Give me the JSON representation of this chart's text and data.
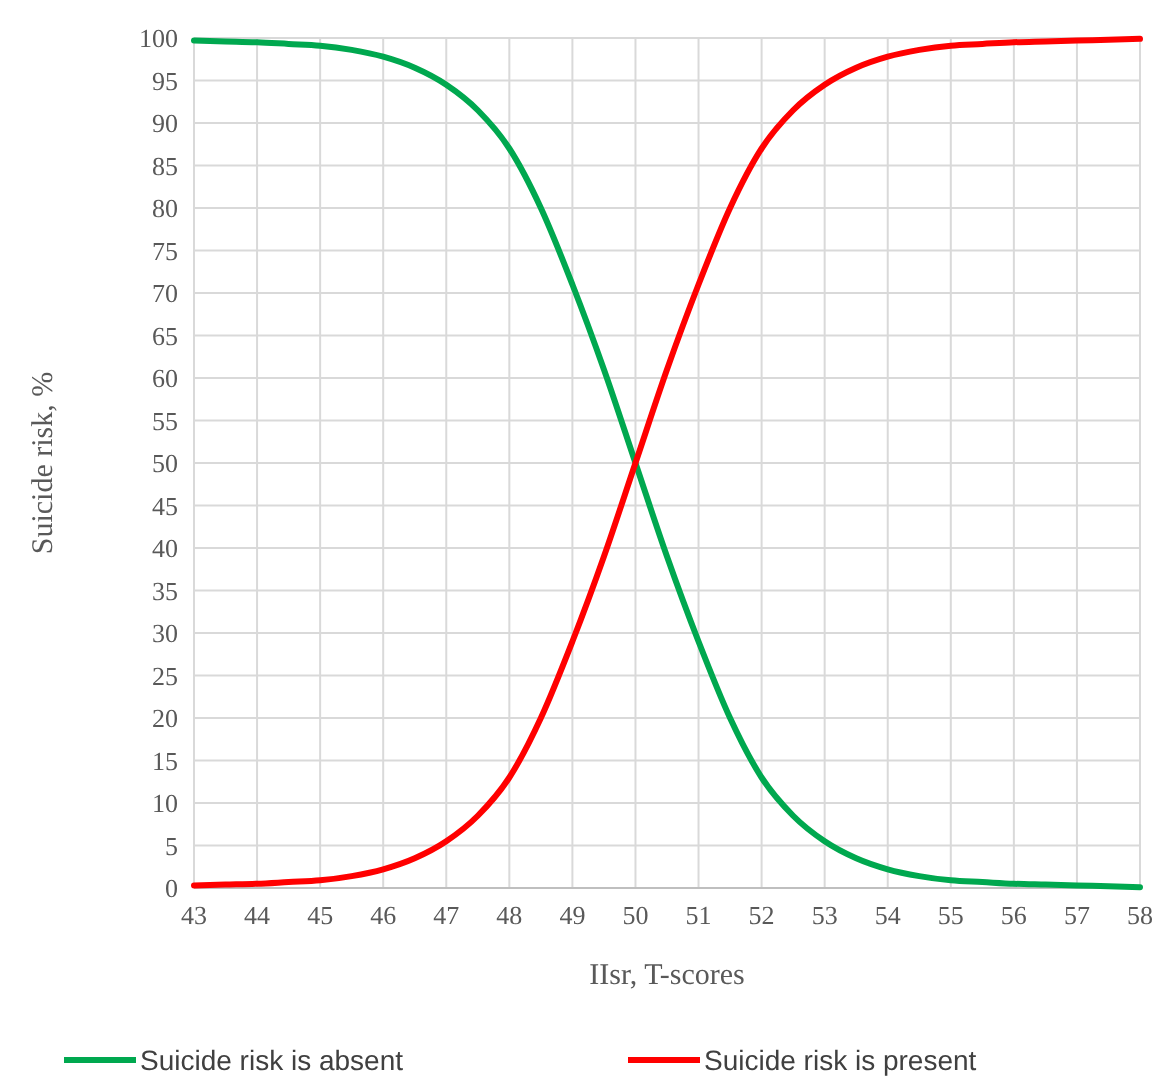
{
  "chart_data": {
    "type": "line",
    "xlabel": "IIsr, T-scores",
    "ylabel": "Suicide risk, %",
    "x": [
      43,
      43.5,
      44,
      44.5,
      45,
      45.5,
      46,
      46.5,
      47,
      47.5,
      48,
      48.5,
      49,
      49.5,
      50,
      50.5,
      51,
      51.5,
      52,
      52.5,
      53,
      53.5,
      54,
      54.5,
      55,
      55.5,
      56,
      56.5,
      57,
      57.5,
      58
    ],
    "series": [
      {
        "name": "Suicide risk is absent",
        "color": "#00a84f",
        "values": [
          99.7,
          99.6,
          99.5,
          99.3,
          99.1,
          98.6,
          97.8,
          96.5,
          94.5,
          91.5,
          87,
          80,
          71,
          61,
          50,
          39,
          29,
          20,
          13,
          8.5,
          5.5,
          3.5,
          2.2,
          1.4,
          0.9,
          0.7,
          0.5,
          0.4,
          0.3,
          0.2,
          0.1
        ]
      },
      {
        "name": "Suicide risk is present",
        "color": "#ff0000",
        "values": [
          0.3,
          0.4,
          0.5,
          0.7,
          0.9,
          1.4,
          2.2,
          3.5,
          5.5,
          8.5,
          13,
          20,
          29,
          39,
          50,
          61,
          71,
          80,
          87,
          91.5,
          94.5,
          96.5,
          97.8,
          98.6,
          99.1,
          99.3,
          99.5,
          99.6,
          99.7,
          99.8,
          99.9
        ]
      }
    ],
    "xlim": [
      43,
      58
    ],
    "xticks": [
      43,
      44,
      45,
      46,
      47,
      48,
      49,
      50,
      51,
      52,
      53,
      54,
      55,
      56,
      57,
      58
    ],
    "ylim": [
      0,
      100
    ],
    "yticks": [
      0,
      5,
      10,
      15,
      20,
      25,
      30,
      35,
      40,
      45,
      50,
      55,
      60,
      65,
      70,
      75,
      80,
      85,
      90,
      95,
      100
    ],
    "grid": true,
    "legend": "bottom",
    "marker": "none",
    "line_style": "solid"
  }
}
